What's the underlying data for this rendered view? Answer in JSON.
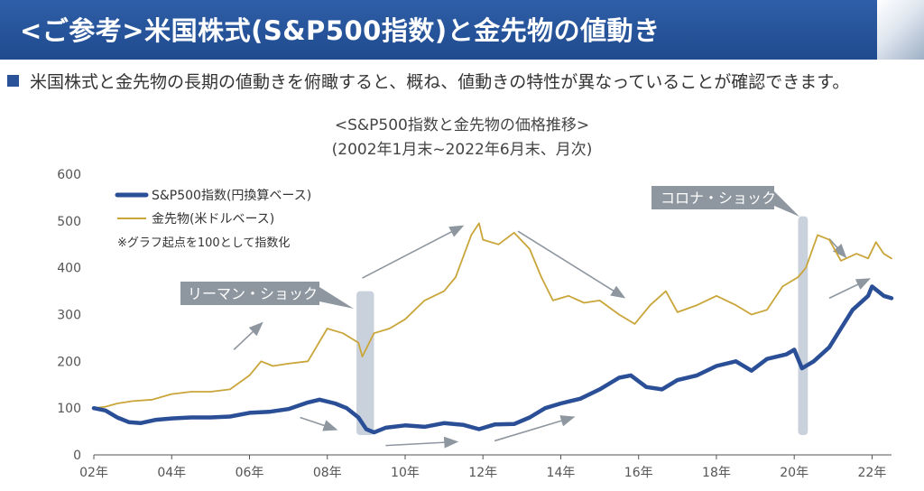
{
  "header": {
    "title": "<ご参考>米国株式(S&P500指数)と金先物の値動き"
  },
  "lead": "米国株式と金先物の長期の値動きを俯瞰すると、概ね、値動きの特性が異なっていることが確認できます。",
  "chart_data": {
    "type": "line",
    "title": "<S&P500指数と金先物の価格推移>",
    "subtitle": "(2002年1月末~2022年6月末、月次)",
    "x_ticks": [
      "02年",
      "04年",
      "06年",
      "08年",
      "10年",
      "12年",
      "14年",
      "16年",
      "18年",
      "20年",
      "22年"
    ],
    "y_ticks": [
      "0",
      "100",
      "200",
      "300",
      "400",
      "500",
      "600"
    ],
    "ylim": [
      0,
      600
    ],
    "xlim": [
      2002.0,
      2022.5
    ],
    "note": "※グラフ起点を100として指数化",
    "callouts": [
      "リーマン・ショック",
      "コロナ・ショック"
    ],
    "shaded_periods": [
      [
        2008.75,
        2009.2,
        350
      ],
      [
        2020.1,
        2020.35,
        510
      ]
    ],
    "series": [
      {
        "name": "S&P500指数(円換算ベース)",
        "color": "#2a4f96",
        "points": [
          [
            2002.0,
            100
          ],
          [
            2002.3,
            95
          ],
          [
            2002.6,
            80
          ],
          [
            2002.9,
            70
          ],
          [
            2003.2,
            68
          ],
          [
            2003.6,
            75
          ],
          [
            2004.0,
            78
          ],
          [
            2004.5,
            80
          ],
          [
            2005.0,
            80
          ],
          [
            2005.5,
            82
          ],
          [
            2006.0,
            90
          ],
          [
            2006.5,
            92
          ],
          [
            2007.0,
            98
          ],
          [
            2007.5,
            112
          ],
          [
            2007.8,
            118
          ],
          [
            2008.2,
            110
          ],
          [
            2008.5,
            100
          ],
          [
            2008.8,
            80
          ],
          [
            2009.0,
            55
          ],
          [
            2009.2,
            48
          ],
          [
            2009.5,
            58
          ],
          [
            2010.0,
            63
          ],
          [
            2010.5,
            60
          ],
          [
            2011.0,
            68
          ],
          [
            2011.5,
            64
          ],
          [
            2011.9,
            55
          ],
          [
            2012.3,
            65
          ],
          [
            2012.8,
            66
          ],
          [
            2013.2,
            80
          ],
          [
            2013.6,
            100
          ],
          [
            2014.0,
            110
          ],
          [
            2014.5,
            120
          ],
          [
            2015.0,
            140
          ],
          [
            2015.5,
            165
          ],
          [
            2015.8,
            170
          ],
          [
            2016.2,
            145
          ],
          [
            2016.6,
            140
          ],
          [
            2017.0,
            160
          ],
          [
            2017.5,
            170
          ],
          [
            2018.0,
            190
          ],
          [
            2018.5,
            200
          ],
          [
            2018.9,
            180
          ],
          [
            2019.3,
            205
          ],
          [
            2019.8,
            215
          ],
          [
            2020.0,
            225
          ],
          [
            2020.2,
            185
          ],
          [
            2020.5,
            200
          ],
          [
            2020.9,
            230
          ],
          [
            2021.2,
            270
          ],
          [
            2021.5,
            310
          ],
          [
            2021.9,
            340
          ],
          [
            2022.0,
            360
          ],
          [
            2022.3,
            340
          ],
          [
            2022.5,
            335
          ]
        ]
      },
      {
        "name": "金先物(米ドルベース)",
        "color": "#c9a53a",
        "points": [
          [
            2002.0,
            100
          ],
          [
            2002.3,
            103
          ],
          [
            2002.6,
            110
          ],
          [
            2003.0,
            115
          ],
          [
            2003.5,
            118
          ],
          [
            2004.0,
            130
          ],
          [
            2004.5,
            135
          ],
          [
            2005.0,
            135
          ],
          [
            2005.5,
            140
          ],
          [
            2006.0,
            170
          ],
          [
            2006.3,
            200
          ],
          [
            2006.6,
            190
          ],
          [
            2007.0,
            195
          ],
          [
            2007.5,
            200
          ],
          [
            2008.0,
            270
          ],
          [
            2008.4,
            260
          ],
          [
            2008.8,
            240
          ],
          [
            2008.9,
            210
          ],
          [
            2009.2,
            260
          ],
          [
            2009.6,
            270
          ],
          [
            2010.0,
            290
          ],
          [
            2010.5,
            330
          ],
          [
            2011.0,
            350
          ],
          [
            2011.3,
            380
          ],
          [
            2011.7,
            470
          ],
          [
            2011.9,
            495
          ],
          [
            2012.0,
            460
          ],
          [
            2012.4,
            450
          ],
          [
            2012.8,
            475
          ],
          [
            2013.2,
            440
          ],
          [
            2013.5,
            380
          ],
          [
            2013.8,
            330
          ],
          [
            2014.2,
            340
          ],
          [
            2014.6,
            325
          ],
          [
            2015.0,
            330
          ],
          [
            2015.5,
            300
          ],
          [
            2015.9,
            280
          ],
          [
            2016.3,
            320
          ],
          [
            2016.7,
            350
          ],
          [
            2017.0,
            305
          ],
          [
            2017.5,
            320
          ],
          [
            2018.0,
            340
          ],
          [
            2018.5,
            320
          ],
          [
            2018.9,
            300
          ],
          [
            2019.3,
            310
          ],
          [
            2019.7,
            360
          ],
          [
            2020.1,
            380
          ],
          [
            2020.3,
            400
          ],
          [
            2020.6,
            470
          ],
          [
            2020.9,
            460
          ],
          [
            2021.2,
            415
          ],
          [
            2021.6,
            430
          ],
          [
            2021.9,
            420
          ],
          [
            2022.1,
            455
          ],
          [
            2022.3,
            430
          ],
          [
            2022.5,
            420
          ]
        ]
      }
    ],
    "arrows": [
      [
        2005.6,
        225,
        2006.3,
        280
      ],
      [
        2008.9,
        378,
        2011.45,
        488
      ],
      [
        2012.9,
        478,
        2015.6,
        338
      ],
      [
        2020.9,
        462,
        2021.3,
        425
      ],
      [
        2007.3,
        80,
        2008.2,
        55
      ],
      [
        2009.5,
        20,
        2011.3,
        28
      ],
      [
        2012.3,
        30,
        2014.3,
        80
      ],
      [
        2020.9,
        335,
        2021.9,
        375
      ]
    ]
  }
}
